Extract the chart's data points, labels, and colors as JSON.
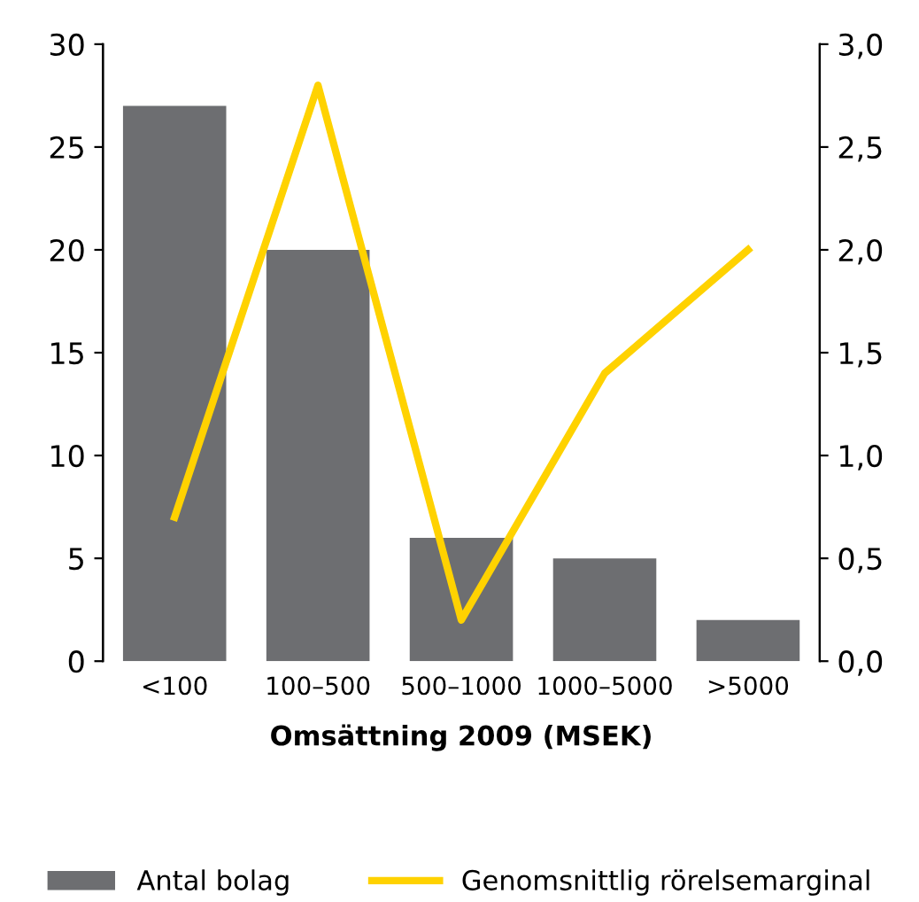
{
  "chart_data": {
    "type": "bar",
    "xlabel": "Omsättning 2009 (MSEK)",
    "categories": [
      "<100",
      "100–500",
      "500–1000",
      "1000–5000",
      ">5000"
    ],
    "series": [
      {
        "name": "Antal bolag",
        "color": "#6d6e71",
        "values": [
          27,
          20,
          6,
          5,
          2
        ]
      },
      {
        "name": "Genomsnittlig rörelsemarginal",
        "type": "line",
        "axis": "y2",
        "color": "#ffd200",
        "values": [
          0.7,
          2.8,
          0.2,
          1.4,
          2.0
        ]
      }
    ],
    "ylim": [
      0,
      30
    ],
    "yticks": [
      0,
      5,
      10,
      15,
      20,
      25,
      30
    ],
    "y2lim": [
      0,
      3
    ],
    "y2ticks": [
      {
        "value": 0,
        "label": "0,0"
      },
      {
        "value": 0.5,
        "label": "0,5"
      },
      {
        "value": 1,
        "label": "1,0"
      },
      {
        "value": 1.5,
        "label": "1,5"
      },
      {
        "value": 2,
        "label": "2,0"
      },
      {
        "value": 2.5,
        "label": "2,5"
      },
      {
        "value": 3,
        "label": "3,0"
      }
    ],
    "legend": "bottom",
    "grid": false,
    "marker": "none",
    "line_style": "solid"
  }
}
